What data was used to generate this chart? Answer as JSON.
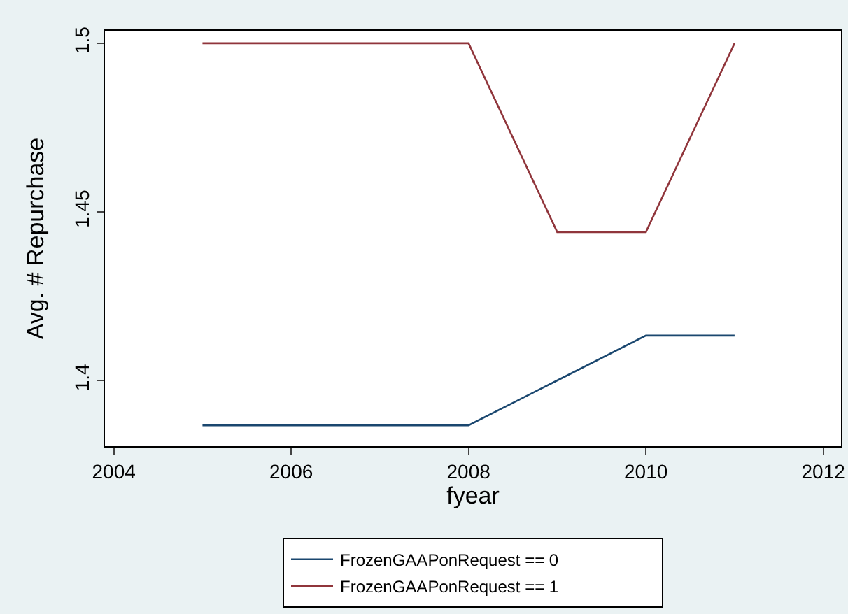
{
  "chart_data": {
    "type": "line",
    "xlabel": "fyear",
    "ylabel": "Avg. # Repurchase",
    "x": [
      2005,
      2006,
      2007,
      2008,
      2009,
      2010,
      2011
    ],
    "series": [
      {
        "name": "FrozenGAAPonRequest == 0",
        "color": "#1a476f",
        "values": [
          1.3867,
          1.3867,
          1.3867,
          1.3867,
          1.4,
          1.4133,
          1.4133
        ]
      },
      {
        "name": "FrozenGAAPonRequest == 1",
        "color": "#90353b",
        "values": [
          1.5,
          1.5,
          1.5,
          1.5,
          1.444,
          1.444,
          1.5
        ]
      }
    ],
    "xlim": [
      2003.9,
      2012.2
    ],
    "xticks": [
      2004,
      2006,
      2008,
      2010,
      2012
    ],
    "ylim": [
      1.3805,
      1.5037
    ],
    "yticks": [
      1.4,
      1.45,
      1.5
    ],
    "grid": false,
    "legend": "bottom",
    "marker": "none",
    "line_style": "solid"
  }
}
